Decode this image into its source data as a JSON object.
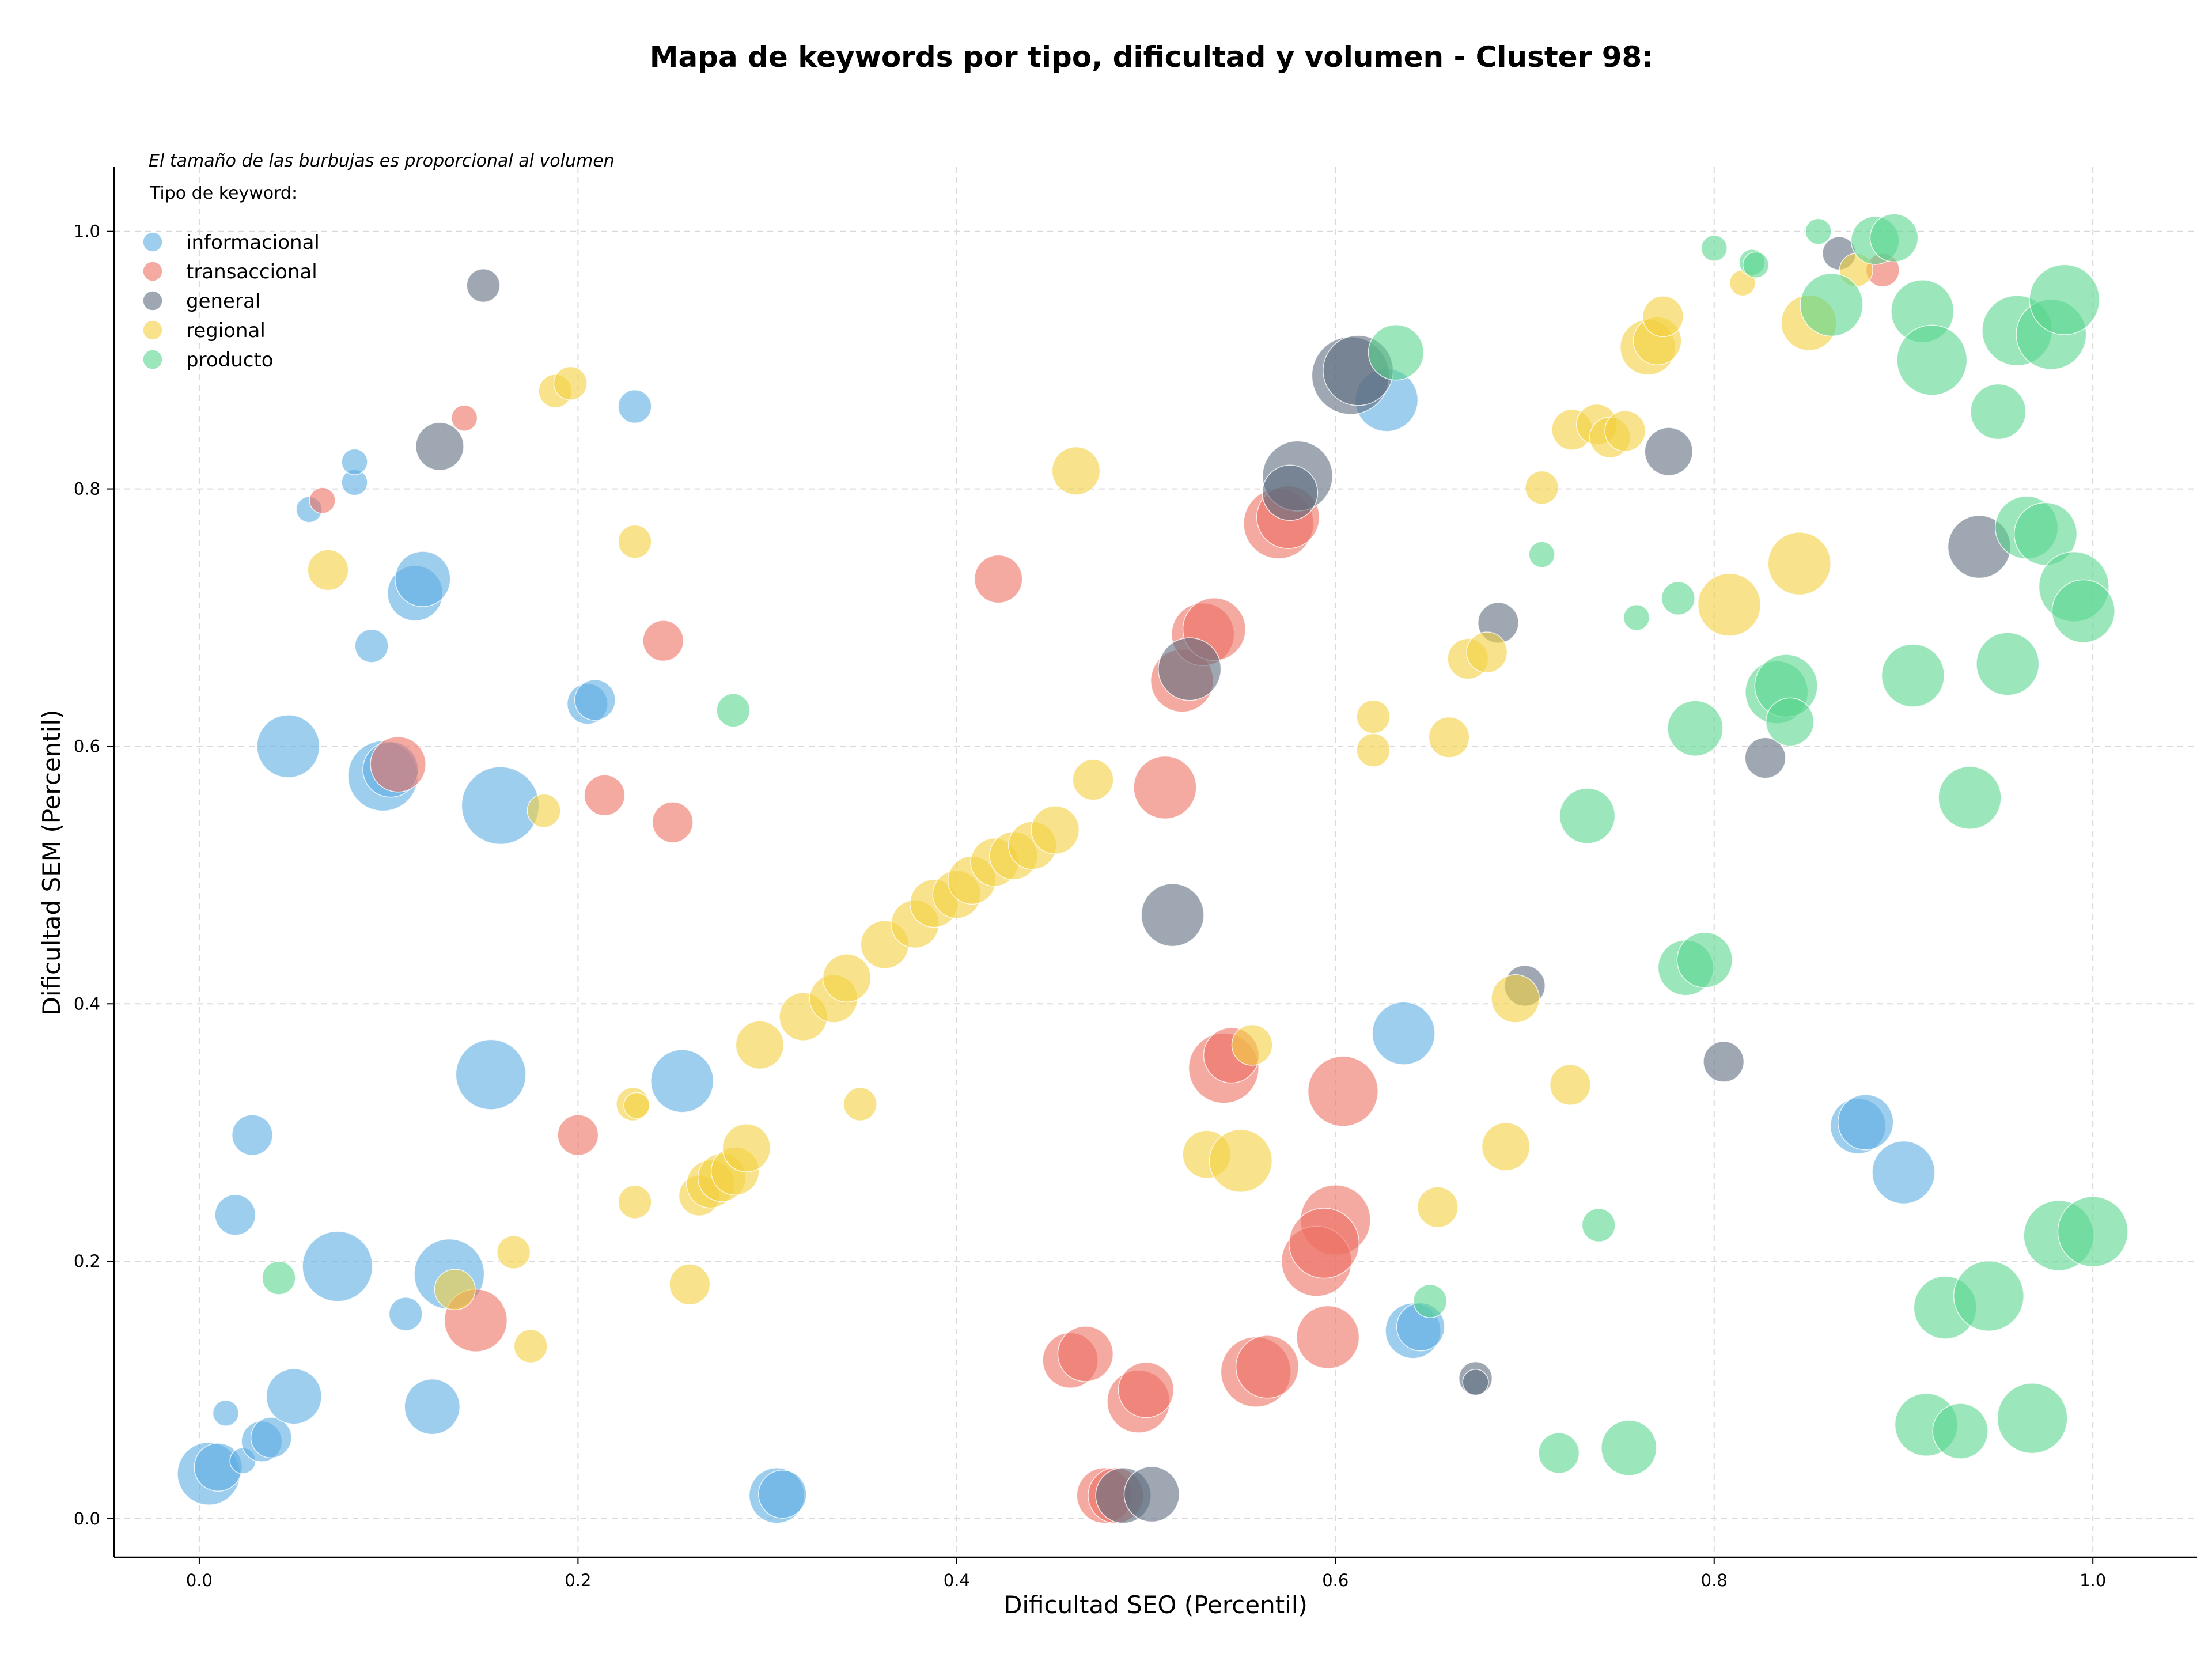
{
  "chart_data": {
    "type": "scatter",
    "title": "Mapa de keywords por tipo, dificultad y volumen - Cluster 98:",
    "xlabel": "Dificultad SEO (Percentil)",
    "ylabel": "Dificultad SEM (Percentil)",
    "xlim": [
      -0.045,
      1.055
    ],
    "ylim": [
      -0.03,
      1.05
    ],
    "x_ticks": [
      "0.0",
      "0.2",
      "0.4",
      "0.6",
      "0.8",
      "1.0"
    ],
    "y_ticks": [
      "0.0",
      "0.2",
      "0.4",
      "0.6",
      "0.8",
      "1.0"
    ],
    "grid": true,
    "grid_style": "dashed",
    "legend_placement": "top-left",
    "legend_note": "El tamaño de las burbujas es proporcional al volumen",
    "legend_title": "Tipo de keyword:",
    "size_encoding": "volumen (relative, 1 = smallest, 10 = largest)",
    "series": [
      {
        "name": "informacional",
        "color": "#5DADE2",
        "points": [
          {
            "x": 0.005,
            "y": 0.035,
            "s": 7
          },
          {
            "x": 0.01,
            "y": 0.04,
            "s": 5
          },
          {
            "x": 0.014,
            "y": 0.082,
            "s": 2
          },
          {
            "x": 0.023,
            "y": 0.045,
            "s": 2
          },
          {
            "x": 0.033,
            "y": 0.06,
            "s": 4
          },
          {
            "x": 0.038,
            "y": 0.063,
            "s": 4
          },
          {
            "x": 0.05,
            "y": 0.095,
            "s": 6
          },
          {
            "x": 0.019,
            "y": 0.236,
            "s": 4
          },
          {
            "x": 0.028,
            "y": 0.298,
            "s": 4
          },
          {
            "x": 0.073,
            "y": 0.196,
            "s": 8
          },
          {
            "x": 0.109,
            "y": 0.159,
            "s": 3
          },
          {
            "x": 0.123,
            "y": 0.087,
            "s": 6
          },
          {
            "x": 0.132,
            "y": 0.19,
            "s": 8
          },
          {
            "x": 0.154,
            "y": 0.345,
            "s": 8
          },
          {
            "x": 0.255,
            "y": 0.34,
            "s": 7
          },
          {
            "x": 0.305,
            "y": 0.018,
            "s": 6
          },
          {
            "x": 0.308,
            "y": 0.019,
            "s": 5
          },
          {
            "x": 0.047,
            "y": 0.6,
            "s": 7
          },
          {
            "x": 0.097,
            "y": 0.577,
            "s": 8
          },
          {
            "x": 0.101,
            "y": 0.582,
            "s": 6
          },
          {
            "x": 0.159,
            "y": 0.554,
            "s": 9
          },
          {
            "x": 0.205,
            "y": 0.633,
            "s": 4
          },
          {
            "x": 0.209,
            "y": 0.636,
            "s": 4
          },
          {
            "x": 0.091,
            "y": 0.678,
            "s": 3
          },
          {
            "x": 0.114,
            "y": 0.719,
            "s": 6
          },
          {
            "x": 0.118,
            "y": 0.73,
            "s": 6
          },
          {
            "x": 0.058,
            "y": 0.784,
            "s": 2
          },
          {
            "x": 0.082,
            "y": 0.805,
            "s": 2
          },
          {
            "x": 0.082,
            "y": 0.821,
            "s": 2
          },
          {
            "x": 0.23,
            "y": 0.864,
            "s": 3
          },
          {
            "x": 0.627,
            "y": 0.869,
            "s": 7
          },
          {
            "x": 0.636,
            "y": 0.377,
            "s": 7
          },
          {
            "x": 0.641,
            "y": 0.146,
            "s": 6
          },
          {
            "x": 0.645,
            "y": 0.149,
            "s": 5
          },
          {
            "x": 0.876,
            "y": 0.305,
            "s": 6
          },
          {
            "x": 0.88,
            "y": 0.308,
            "s": 6
          },
          {
            "x": 0.9,
            "y": 0.269,
            "s": 7
          }
        ]
      },
      {
        "name": "transaccional",
        "color": "#EC7063",
        "points": [
          {
            "x": 0.065,
            "y": 0.791,
            "s": 2
          },
          {
            "x": 0.14,
            "y": 0.855,
            "s": 2
          },
          {
            "x": 0.105,
            "y": 0.586,
            "s": 6
          },
          {
            "x": 0.245,
            "y": 0.682,
            "s": 4
          },
          {
            "x": 0.214,
            "y": 0.562,
            "s": 4
          },
          {
            "x": 0.25,
            "y": 0.541,
            "s": 4
          },
          {
            "x": 0.2,
            "y": 0.298,
            "s": 4
          },
          {
            "x": 0.146,
            "y": 0.154,
            "s": 7
          },
          {
            "x": 0.422,
            "y": 0.73,
            "s": 5
          },
          {
            "x": 0.51,
            "y": 0.568,
            "s": 7
          },
          {
            "x": 0.519,
            "y": 0.651,
            "s": 7
          },
          {
            "x": 0.53,
            "y": 0.687,
            "s": 7
          },
          {
            "x": 0.536,
            "y": 0.691,
            "s": 7
          },
          {
            "x": 0.57,
            "y": 0.773,
            "s": 8
          },
          {
            "x": 0.575,
            "y": 0.778,
            "s": 7
          },
          {
            "x": 0.541,
            "y": 0.35,
            "s": 8
          },
          {
            "x": 0.545,
            "y": 0.36,
            "s": 6
          },
          {
            "x": 0.604,
            "y": 0.332,
            "s": 8
          },
          {
            "x": 0.6,
            "y": 0.232,
            "s": 8
          },
          {
            "x": 0.59,
            "y": 0.2,
            "s": 8
          },
          {
            "x": 0.594,
            "y": 0.214,
            "s": 8
          },
          {
            "x": 0.596,
            "y": 0.141,
            "s": 7
          },
          {
            "x": 0.558,
            "y": 0.114,
            "s": 8
          },
          {
            "x": 0.564,
            "y": 0.118,
            "s": 7
          },
          {
            "x": 0.46,
            "y": 0.123,
            "s": 6
          },
          {
            "x": 0.468,
            "y": 0.128,
            "s": 6
          },
          {
            "x": 0.496,
            "y": 0.091,
            "s": 7
          },
          {
            "x": 0.5,
            "y": 0.1,
            "s": 6
          },
          {
            "x": 0.478,
            "y": 0.018,
            "s": 6
          },
          {
            "x": 0.484,
            "y": 0.018,
            "s": 6
          },
          {
            "x": 0.889,
            "y": 0.97,
            "s": 3
          }
        ]
      },
      {
        "name": "general",
        "color": "#5D6D7E",
        "points": [
          {
            "x": 0.15,
            "y": 0.958,
            "s": 3
          },
          {
            "x": 0.127,
            "y": 0.833,
            "s": 5
          },
          {
            "x": 0.514,
            "y": 0.469,
            "s": 7
          },
          {
            "x": 0.523,
            "y": 0.66,
            "s": 7
          },
          {
            "x": 0.58,
            "y": 0.81,
            "s": 8
          },
          {
            "x": 0.576,
            "y": 0.797,
            "s": 6
          },
          {
            "x": 0.608,
            "y": 0.888,
            "s": 9
          },
          {
            "x": 0.612,
            "y": 0.892,
            "s": 8
          },
          {
            "x": 0.686,
            "y": 0.696,
            "s": 4
          },
          {
            "x": 0.7,
            "y": 0.414,
            "s": 4
          },
          {
            "x": 0.488,
            "y": 0.018,
            "s": 6
          },
          {
            "x": 0.503,
            "y": 0.019,
            "s": 6
          },
          {
            "x": 0.674,
            "y": 0.109,
            "s": 3
          },
          {
            "x": 0.674,
            "y": 0.106,
            "s": 2
          },
          {
            "x": 0.776,
            "y": 0.829,
            "s": 5
          },
          {
            "x": 0.827,
            "y": 0.591,
            "s": 4
          },
          {
            "x": 0.805,
            "y": 0.355,
            "s": 4
          },
          {
            "x": 0.94,
            "y": 0.755,
            "s": 7
          },
          {
            "x": 0.866,
            "y": 0.983,
            "s": 3
          }
        ]
      },
      {
        "name": "regional",
        "color": "#F4D03F",
        "points": [
          {
            "x": 0.068,
            "y": 0.737,
            "s": 4
          },
          {
            "x": 0.188,
            "y": 0.876,
            "s": 3
          },
          {
            "x": 0.196,
            "y": 0.882,
            "s": 3
          },
          {
            "x": 0.23,
            "y": 0.759,
            "s": 3
          },
          {
            "x": 0.182,
            "y": 0.55,
            "s": 3
          },
          {
            "x": 0.135,
            "y": 0.178,
            "s": 4
          },
          {
            "x": 0.166,
            "y": 0.207,
            "s": 3
          },
          {
            "x": 0.175,
            "y": 0.134,
            "s": 3
          },
          {
            "x": 0.229,
            "y": 0.322,
            "s": 3
          },
          {
            "x": 0.231,
            "y": 0.321,
            "s": 2
          },
          {
            "x": 0.23,
            "y": 0.246,
            "s": 3
          },
          {
            "x": 0.259,
            "y": 0.182,
            "s": 4
          },
          {
            "x": 0.264,
            "y": 0.251,
            "s": 4
          },
          {
            "x": 0.27,
            "y": 0.26,
            "s": 5
          },
          {
            "x": 0.276,
            "y": 0.265,
            "s": 5
          },
          {
            "x": 0.283,
            "y": 0.27,
            "s": 5
          },
          {
            "x": 0.289,
            "y": 0.288,
            "s": 5
          },
          {
            "x": 0.296,
            "y": 0.368,
            "s": 5
          },
          {
            "x": 0.319,
            "y": 0.39,
            "s": 5
          },
          {
            "x": 0.335,
            "y": 0.404,
            "s": 5
          },
          {
            "x": 0.342,
            "y": 0.42,
            "s": 5
          },
          {
            "x": 0.362,
            "y": 0.446,
            "s": 5
          },
          {
            "x": 0.378,
            "y": 0.462,
            "s": 5
          },
          {
            "x": 0.388,
            "y": 0.478,
            "s": 5
          },
          {
            "x": 0.4,
            "y": 0.485,
            "s": 5
          },
          {
            "x": 0.408,
            "y": 0.496,
            "s": 5
          },
          {
            "x": 0.42,
            "y": 0.51,
            "s": 5
          },
          {
            "x": 0.43,
            "y": 0.515,
            "s": 5
          },
          {
            "x": 0.44,
            "y": 0.523,
            "s": 5
          },
          {
            "x": 0.452,
            "y": 0.535,
            "s": 5
          },
          {
            "x": 0.349,
            "y": 0.322,
            "s": 3
          },
          {
            "x": 0.463,
            "y": 0.814,
            "s": 5
          },
          {
            "x": 0.472,
            "y": 0.574,
            "s": 4
          },
          {
            "x": 0.532,
            "y": 0.283,
            "s": 5
          },
          {
            "x": 0.55,
            "y": 0.278,
            "s": 7
          },
          {
            "x": 0.556,
            "y": 0.368,
            "s": 4
          },
          {
            "x": 0.62,
            "y": 0.623,
            "s": 3
          },
          {
            "x": 0.62,
            "y": 0.597,
            "s": 3
          },
          {
            "x": 0.66,
            "y": 0.607,
            "s": 4
          },
          {
            "x": 0.67,
            "y": 0.668,
            "s": 4
          },
          {
            "x": 0.68,
            "y": 0.673,
            "s": 4
          },
          {
            "x": 0.654,
            "y": 0.242,
            "s": 4
          },
          {
            "x": 0.69,
            "y": 0.289,
            "s": 5
          },
          {
            "x": 0.695,
            "y": 0.404,
            "s": 5
          },
          {
            "x": 0.709,
            "y": 0.801,
            "s": 3
          },
          {
            "x": 0.724,
            "y": 0.337,
            "s": 4
          },
          {
            "x": 0.725,
            "y": 0.846,
            "s": 4
          },
          {
            "x": 0.738,
            "y": 0.85,
            "s": 4
          },
          {
            "x": 0.745,
            "y": 0.84,
            "s": 4
          },
          {
            "x": 0.753,
            "y": 0.845,
            "s": 4
          },
          {
            "x": 0.765,
            "y": 0.91,
            "s": 6
          },
          {
            "x": 0.77,
            "y": 0.915,
            "s": 5
          },
          {
            "x": 0.773,
            "y": 0.934,
            "s": 4
          },
          {
            "x": 0.808,
            "y": 0.71,
            "s": 7
          },
          {
            "x": 0.815,
            "y": 0.96,
            "s": 2
          },
          {
            "x": 0.845,
            "y": 0.742,
            "s": 7
          },
          {
            "x": 0.85,
            "y": 0.929,
            "s": 6
          },
          {
            "x": 0.875,
            "y": 0.97,
            "s": 3
          }
        ]
      },
      {
        "name": "producto",
        "color": "#58D68D",
        "points": [
          {
            "x": 0.042,
            "y": 0.187,
            "s": 3
          },
          {
            "x": 0.282,
            "y": 0.628,
            "s": 3
          },
          {
            "x": 0.632,
            "y": 0.906,
            "s": 6
          },
          {
            "x": 0.65,
            "y": 0.169,
            "s": 3
          },
          {
            "x": 0.709,
            "y": 0.749,
            "s": 2
          },
          {
            "x": 0.718,
            "y": 0.051,
            "s": 4
          },
          {
            "x": 0.733,
            "y": 0.546,
            "s": 6
          },
          {
            "x": 0.739,
            "y": 0.228,
            "s": 3
          },
          {
            "x": 0.755,
            "y": 0.055,
            "s": 6
          },
          {
            "x": 0.759,
            "y": 0.7,
            "s": 2
          },
          {
            "x": 0.781,
            "y": 0.715,
            "s": 3
          },
          {
            "x": 0.79,
            "y": 0.614,
            "s": 6
          },
          {
            "x": 0.785,
            "y": 0.428,
            "s": 6
          },
          {
            "x": 0.795,
            "y": 0.434,
            "s": 6
          },
          {
            "x": 0.8,
            "y": 0.987,
            "s": 2
          },
          {
            "x": 0.82,
            "y": 0.976,
            "s": 2
          },
          {
            "x": 0.822,
            "y": 0.974,
            "s": 2
          },
          {
            "x": 0.833,
            "y": 0.642,
            "s": 7
          },
          {
            "x": 0.838,
            "y": 0.647,
            "s": 7
          },
          {
            "x": 0.84,
            "y": 0.619,
            "s": 5
          },
          {
            "x": 0.855,
            "y": 1.0,
            "s": 2
          },
          {
            "x": 0.862,
            "y": 0.943,
            "s": 7
          },
          {
            "x": 0.885,
            "y": 0.993,
            "s": 5
          },
          {
            "x": 0.895,
            "y": 0.995,
            "s": 5
          },
          {
            "x": 0.905,
            "y": 0.655,
            "s": 7
          },
          {
            "x": 0.91,
            "y": 0.938,
            "s": 7
          },
          {
            "x": 0.915,
            "y": 0.9,
            "s": 8
          },
          {
            "x": 0.922,
            "y": 0.164,
            "s": 7
          },
          {
            "x": 0.935,
            "y": 0.56,
            "s": 7
          },
          {
            "x": 0.945,
            "y": 0.173,
            "s": 8
          },
          {
            "x": 0.95,
            "y": 0.86,
            "s": 6
          },
          {
            "x": 0.955,
            "y": 0.664,
            "s": 7
          },
          {
            "x": 0.96,
            "y": 0.923,
            "s": 8
          },
          {
            "x": 0.965,
            "y": 0.77,
            "s": 7
          },
          {
            "x": 0.975,
            "y": 0.765,
            "s": 7
          },
          {
            "x": 0.978,
            "y": 0.92,
            "s": 8
          },
          {
            "x": 0.982,
            "y": 0.22,
            "s": 8
          },
          {
            "x": 0.985,
            "y": 0.947,
            "s": 8
          },
          {
            "x": 0.99,
            "y": 0.724,
            "s": 8
          },
          {
            "x": 0.995,
            "y": 0.705,
            "s": 7
          },
          {
            "x": 1.0,
            "y": 0.223,
            "s": 8
          },
          {
            "x": 0.912,
            "y": 0.073,
            "s": 7
          },
          {
            "x": 0.93,
            "y": 0.068,
            "s": 6
          },
          {
            "x": 0.968,
            "y": 0.078,
            "s": 8
          }
        ]
      }
    ]
  }
}
